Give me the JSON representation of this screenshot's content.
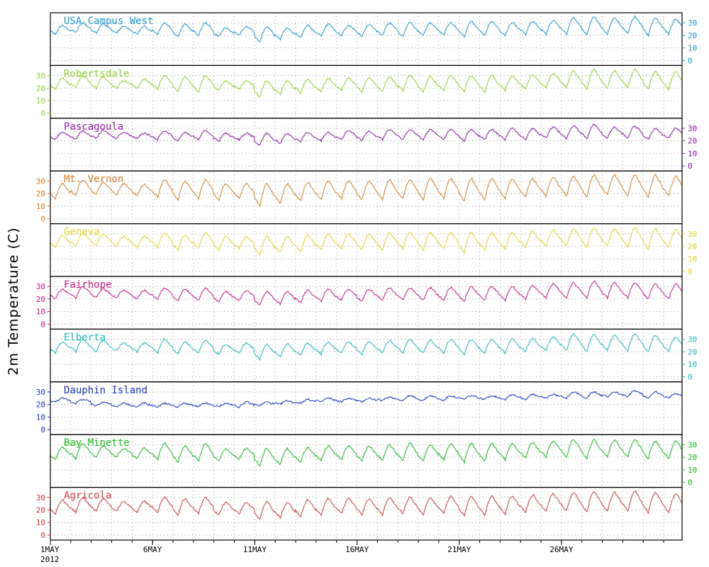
{
  "chart_data": {
    "type": "line",
    "title": "",
    "ylabel": "2m Temperature (C)",
    "xlabel": "",
    "x_range": [
      "2012-05-01",
      "2012-05-31"
    ],
    "ylim": [
      -4,
      38
    ],
    "yticks": [
      0,
      10,
      20,
      30
    ],
    "grid": true,
    "xticks": [
      {
        "day": 1,
        "label": "1MAY",
        "sublabel": "2012"
      },
      {
        "day": 6,
        "label": "6MAY"
      },
      {
        "day": 11,
        "label": "11MAY"
      },
      {
        "day": 16,
        "label": "16MAY"
      },
      {
        "day": 21,
        "label": "21MAY"
      },
      {
        "day": 26,
        "label": "26MAY"
      }
    ],
    "panels": [
      {
        "name": "USA Campus West",
        "color": "#1a9be0",
        "axis_side": "right",
        "daily_max": [
          28,
          30,
          29,
          27,
          27,
          30,
          29,
          30,
          26,
          27,
          27,
          26,
          28,
          29,
          28,
          29,
          30,
          30,
          30,
          30,
          31,
          31,
          30,
          31,
          32,
          34,
          35,
          34,
          35,
          34,
          33
        ],
        "daily_min": [
          21,
          22,
          22,
          22,
          21,
          21,
          19,
          20,
          19,
          20,
          15,
          17,
          18,
          19,
          20,
          19,
          20,
          19,
          20,
          20,
          19,
          20,
          20,
          21,
          21,
          21,
          20,
          21,
          21,
          20,
          21
        ]
      },
      {
        "name": "Robertsdale",
        "color": "#8ed62e",
        "axis_side": "left",
        "daily_max": [
          28,
          30,
          29,
          26,
          27,
          30,
          29,
          30,
          26,
          26,
          26,
          26,
          27,
          28,
          28,
          28,
          29,
          30,
          29,
          30,
          30,
          30,
          30,
          31,
          32,
          34,
          35,
          34,
          35,
          33,
          33
        ],
        "daily_min": [
          19,
          20,
          20,
          20,
          20,
          19,
          17,
          17,
          18,
          19,
          13,
          15,
          16,
          17,
          18,
          17,
          17,
          18,
          17,
          18,
          17,
          17,
          18,
          19,
          20,
          20,
          19,
          20,
          20,
          19,
          19
        ]
      },
      {
        "name": "Pascagoula",
        "color": "#9616b9",
        "axis_side": "right",
        "daily_max": [
          27,
          28,
          28,
          27,
          26,
          28,
          27,
          28,
          26,
          26,
          26,
          26,
          27,
          27,
          28,
          28,
          29,
          29,
          29,
          29,
          29,
          29,
          30,
          30,
          31,
          32,
          33,
          31,
          32,
          30,
          30
        ],
        "daily_min": [
          21,
          21,
          22,
          22,
          22,
          21,
          20,
          21,
          20,
          21,
          16,
          18,
          19,
          20,
          21,
          20,
          21,
          21,
          21,
          21,
          20,
          21,
          21,
          21,
          22,
          22,
          22,
          22,
          22,
          21,
          22
        ]
      },
      {
        "name": "Mt. Vernon",
        "color": "#e27f25",
        "axis_side": "left",
        "daily_max": [
          28,
          31,
          29,
          28,
          27,
          31,
          30,
          31,
          28,
          28,
          28,
          28,
          29,
          30,
          30,
          30,
          31,
          31,
          32,
          32,
          32,
          32,
          32,
          32,
          33,
          34,
          35,
          35,
          35,
          35,
          34
        ],
        "daily_min": [
          16,
          18,
          19,
          19,
          18,
          17,
          15,
          16,
          15,
          16,
          10,
          12,
          14,
          15,
          16,
          15,
          15,
          16,
          15,
          16,
          14,
          15,
          16,
          17,
          18,
          18,
          17,
          19,
          18,
          17,
          18
        ]
      },
      {
        "name": "Geneva",
        "color": "#e6d72a",
        "axis_side": "right",
        "daily_max": [
          29,
          31,
          30,
          28,
          28,
          31,
          29,
          31,
          28,
          28,
          28,
          28,
          29,
          30,
          30,
          30,
          31,
          31,
          31,
          31,
          31,
          31,
          31,
          32,
          33,
          34,
          35,
          34,
          35,
          34,
          33
        ],
        "daily_min": [
          19,
          20,
          20,
          20,
          19,
          19,
          17,
          18,
          17,
          18,
          13,
          15,
          16,
          17,
          18,
          17,
          17,
          18,
          17,
          18,
          15,
          17,
          18,
          19,
          20,
          20,
          19,
          20,
          19,
          18,
          19
        ]
      },
      {
        "name": "Fairhope",
        "color": "#dc1a86",
        "axis_side": "left",
        "daily_max": [
          28,
          30,
          28,
          27,
          27,
          29,
          28,
          29,
          26,
          27,
          26,
          26,
          27,
          28,
          28,
          28,
          29,
          29,
          29,
          29,
          30,
          30,
          30,
          31,
          32,
          33,
          34,
          33,
          33,
          32,
          32
        ],
        "daily_min": [
          20,
          21,
          21,
          21,
          20,
          20,
          18,
          19,
          18,
          19,
          15,
          16,
          17,
          18,
          19,
          18,
          19,
          19,
          19,
          19,
          18,
          19,
          19,
          20,
          21,
          21,
          21,
          21,
          21,
          20,
          20
        ]
      },
      {
        "name": "Elberta",
        "color": "#1fbdbd",
        "axis_side": "right",
        "daily_max": [
          28,
          30,
          29,
          27,
          27,
          30,
          28,
          29,
          26,
          27,
          26,
          26,
          27,
          28,
          28,
          28,
          29,
          30,
          29,
          30,
          30,
          30,
          30,
          31,
          32,
          34,
          34,
          33,
          34,
          33,
          32
        ],
        "daily_min": [
          19,
          20,
          20,
          21,
          20,
          19,
          18,
          19,
          18,
          19,
          14,
          16,
          17,
          18,
          19,
          18,
          19,
          19,
          19,
          19,
          18,
          19,
          19,
          20,
          21,
          21,
          20,
          21,
          21,
          20,
          20
        ]
      },
      {
        "name": "Dauphin Island",
        "color": "#1d35d8",
        "axis_side": "left",
        "daily_max": [
          25,
          24,
          22,
          21,
          21,
          21,
          21,
          21,
          21,
          22,
          22,
          23,
          24,
          25,
          25,
          25,
          26,
          27,
          27,
          27,
          27,
          27,
          28,
          28,
          28,
          30,
          30,
          30,
          31,
          30,
          29
        ],
        "daily_min": [
          22,
          21,
          19,
          18,
          18,
          18,
          18,
          18,
          18,
          18,
          19,
          20,
          21,
          22,
          22,
          22,
          23,
          23,
          23,
          23,
          24,
          24,
          24,
          24,
          25,
          25,
          25,
          26,
          26,
          25,
          25
        ]
      },
      {
        "name": "Bay Minette",
        "color": "#12c217",
        "axis_side": "right",
        "daily_max": [
          28,
          31,
          29,
          27,
          27,
          31,
          29,
          31,
          27,
          27,
          27,
          27,
          28,
          29,
          29,
          29,
          30,
          31,
          30,
          31,
          31,
          31,
          31,
          32,
          33,
          34,
          34,
          34,
          34,
          33,
          33
        ],
        "daily_min": [
          18,
          19,
          20,
          20,
          19,
          18,
          16,
          17,
          17,
          18,
          13,
          14,
          16,
          17,
          18,
          17,
          17,
          17,
          17,
          18,
          16,
          17,
          18,
          19,
          20,
          20,
          19,
          20,
          20,
          19,
          19
        ]
      },
      {
        "name": "Agricola",
        "color": "#e3393c",
        "axis_side": "left",
        "daily_max": [
          28,
          30,
          29,
          27,
          27,
          30,
          29,
          30,
          26,
          26,
          27,
          26,
          28,
          29,
          29,
          29,
          30,
          30,
          30,
          31,
          31,
          31,
          31,
          32,
          33,
          34,
          35,
          34,
          35,
          34,
          33
        ],
        "daily_min": [
          17,
          18,
          19,
          19,
          18,
          18,
          16,
          17,
          16,
          17,
          12,
          14,
          15,
          16,
          17,
          16,
          16,
          17,
          16,
          17,
          15,
          16,
          17,
          18,
          19,
          19,
          18,
          19,
          19,
          18,
          18
        ]
      }
    ]
  }
}
